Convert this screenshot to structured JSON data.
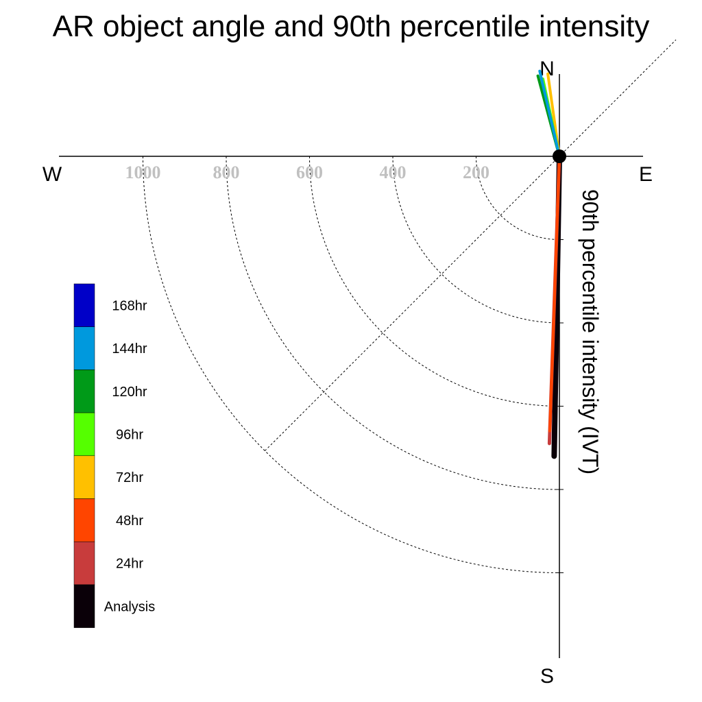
{
  "chart_data": {
    "type": "polar-vector",
    "title": "AR object angle and 90th percentile intensity",
    "radial_axis_label": "90th percentile intensity (IVT)",
    "compass": {
      "north": "N",
      "south": "S",
      "east": "E",
      "west": "W"
    },
    "rings": [
      200,
      400,
      600,
      800,
      1000
    ],
    "ring_labels": [
      "1000",
      "800",
      "600",
      "400",
      "200"
    ],
    "series": [
      {
        "name": "Analysis",
        "color": "#0a0008",
        "angle_deg": 181,
        "magnitude": 720
      },
      {
        "name": "24hr",
        "color": "#c83c3c",
        "angle_deg": 182,
        "magnitude": 690
      },
      {
        "name": "48hr",
        "color": "#ff4500",
        "angle_deg": 182,
        "magnitude": 660
      },
      {
        "name": "72hr",
        "color": "#ffc000",
        "angle_deg": 352,
        "magnitude": 200
      },
      {
        "name": "96hr",
        "color": "#55ff00",
        "angle_deg": 348,
        "magnitude": 190
      },
      {
        "name": "120hr",
        "color": "#009a18",
        "angle_deg": 345,
        "magnitude": 200
      },
      {
        "name": "144hr",
        "color": "#0099dd",
        "angle_deg": 347,
        "magnitude": 210
      }
    ],
    "legend": {
      "placement": "left",
      "entries": [
        {
          "label": "168hr",
          "color": "#0000c8"
        },
        {
          "label": "144hr",
          "color": "#0099dd"
        },
        {
          "label": "120hr",
          "color": "#009a18"
        },
        {
          "label": "96hr",
          "color": "#55ff00"
        },
        {
          "label": "72hr",
          "color": "#ffc000"
        },
        {
          "label": "48hr",
          "color": "#ff4500"
        },
        {
          "label": "24hr",
          "color": "#c83c3c"
        },
        {
          "label": "Analysis",
          "color": "#0a0008"
        }
      ]
    }
  }
}
